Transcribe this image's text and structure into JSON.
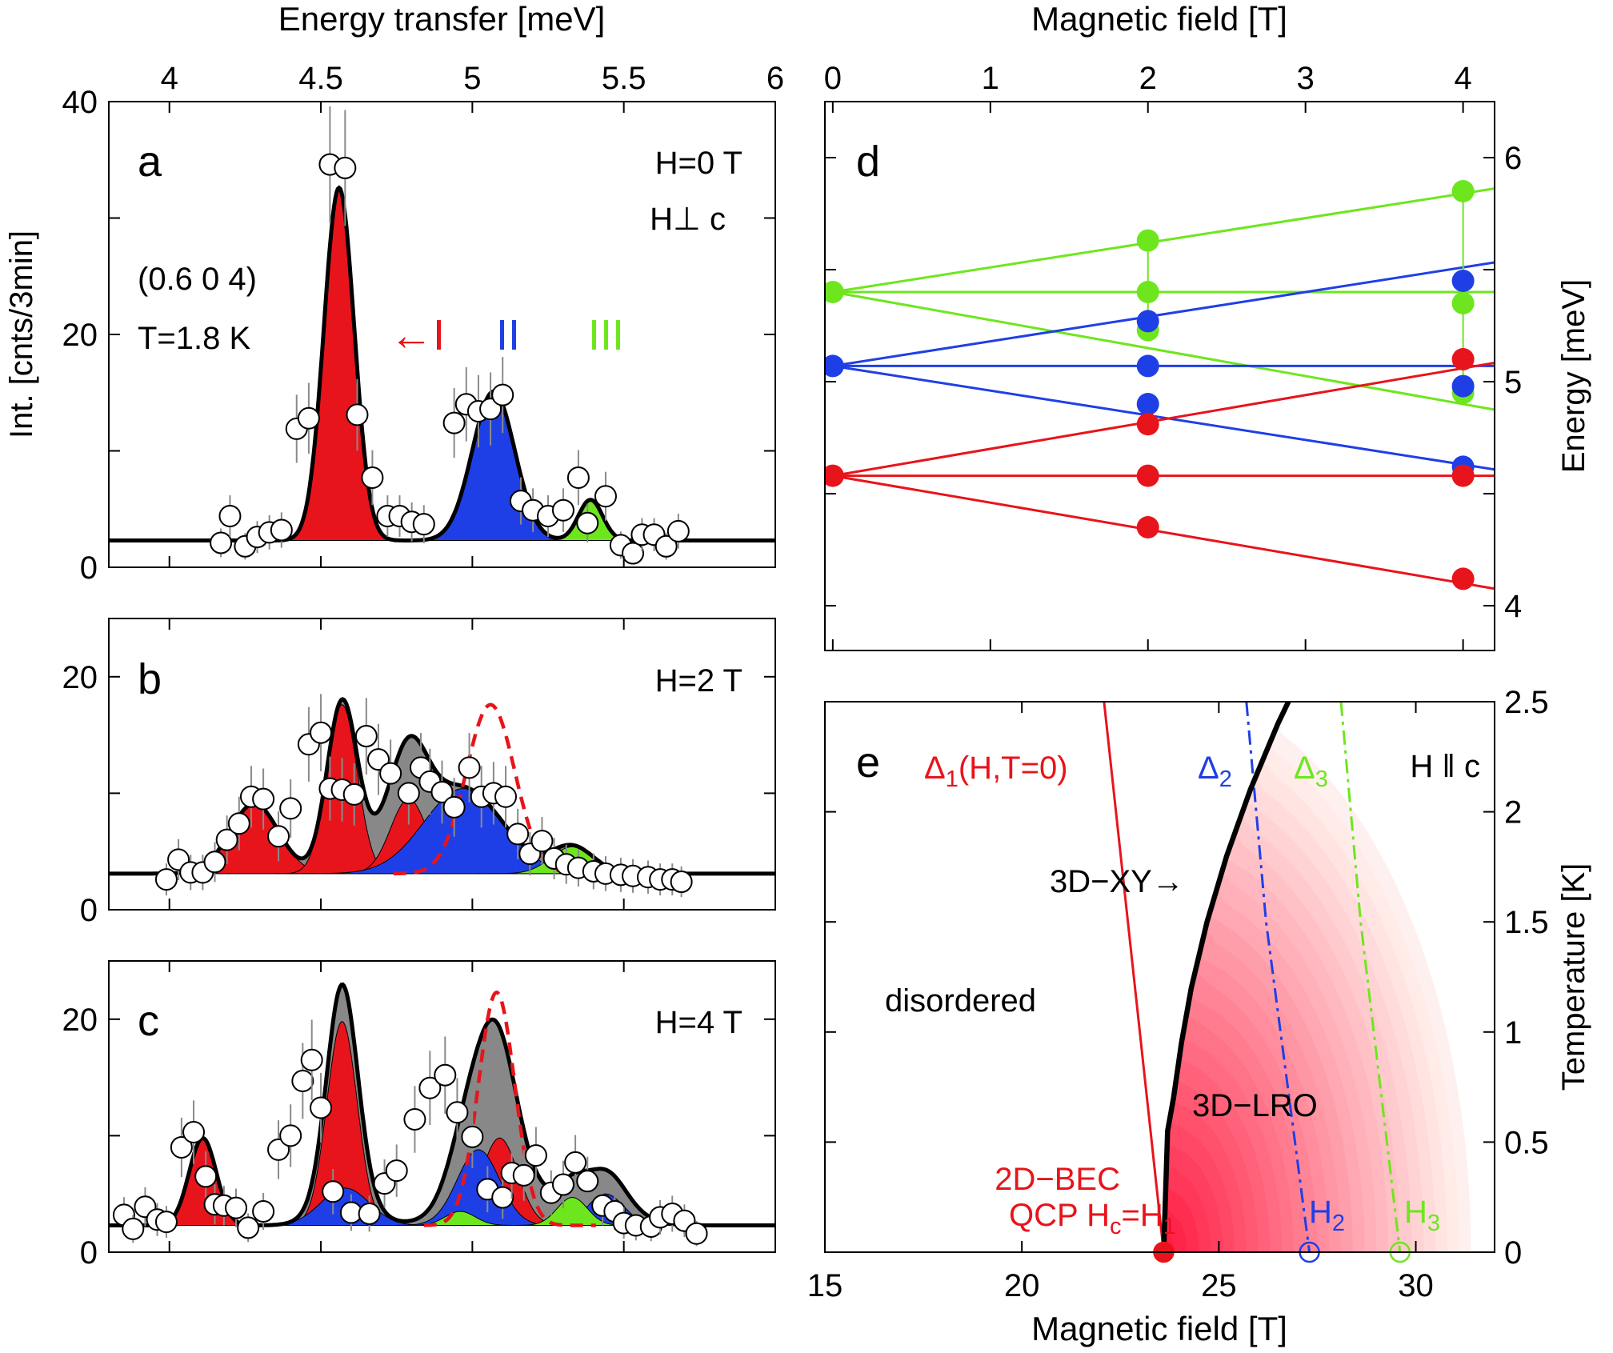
{
  "colors": {
    "I": "#e8141b",
    "II": "#1f3fe6",
    "III": "#6ee61e",
    "gray": "#888888",
    "black": "#000000",
    "dashed": "#e8141b"
  },
  "chart_data": [
    {
      "panel": "a",
      "type": "scatter",
      "xlabel": "Energy transfer [meV]",
      "ylabel": "Int. [cnts/3min]",
      "xlim": [
        3.8,
        6.0
      ],
      "ylim": [
        0,
        40
      ],
      "x_ticks": [
        4,
        4.5,
        5,
        5.5,
        6
      ],
      "y_ticks": [
        0,
        20,
        40
      ],
      "annotations": {
        "field": "H=0 T",
        "orientation": "H⊥ c",
        "q": "(0.6 0 4)",
        "temp": "T=1.8 K",
        "mode1": "←I",
        "mode2": "II",
        "mode3": "III"
      },
      "background": 2.3,
      "peaks": [
        {
          "mode": "I",
          "center": 4.56,
          "amp": 30.3,
          "width": 0.05
        },
        {
          "mode": "II",
          "center": 5.07,
          "amp": 12.8,
          "width": 0.07
        },
        {
          "mode": "III",
          "center": 5.39,
          "amp": 3.5,
          "width": 0.04
        }
      ],
      "points": [
        [
          4.17,
          2.1
        ],
        [
          4.2,
          4.4
        ],
        [
          4.25,
          1.8
        ],
        [
          4.29,
          2.6
        ],
        [
          4.33,
          3.0
        ],
        [
          4.37,
          3.2
        ],
        [
          4.42,
          11.9
        ],
        [
          4.46,
          12.8
        ],
        [
          4.53,
          34.6
        ],
        [
          4.58,
          34.3
        ],
        [
          4.62,
          13.1
        ],
        [
          4.67,
          7.7
        ],
        [
          4.72,
          4.4
        ],
        [
          4.76,
          4.4
        ],
        [
          4.8,
          3.9
        ],
        [
          4.84,
          3.7
        ],
        [
          4.94,
          12.4
        ],
        [
          4.98,
          14.0
        ],
        [
          5.02,
          13.4
        ],
        [
          5.06,
          13.6
        ],
        [
          5.1,
          14.8
        ],
        [
          5.16,
          5.7
        ],
        [
          5.2,
          4.9
        ],
        [
          5.25,
          4.4
        ],
        [
          5.3,
          4.9
        ],
        [
          5.35,
          7.7
        ],
        [
          5.38,
          3.8
        ],
        [
          5.44,
          6.1
        ],
        [
          5.49,
          1.9
        ],
        [
          5.53,
          1.2
        ],
        [
          5.56,
          2.8
        ],
        [
          5.6,
          2.8
        ],
        [
          5.64,
          1.8
        ],
        [
          5.68,
          3.1
        ]
      ]
    },
    {
      "panel": "b",
      "type": "scatter",
      "xlim": [
        3.8,
        6.0
      ],
      "ylim": [
        0,
        25
      ],
      "y_ticks": [
        0,
        20
      ],
      "annotations": {
        "field": "H=2 T"
      },
      "background": 3.1,
      "peaks": [
        {
          "mode": "I",
          "center": 4.28,
          "amp": 6.0,
          "width": 0.08
        },
        {
          "mode": "I",
          "center": 4.57,
          "amp": 14.5,
          "width": 0.05
        },
        {
          "mode": "I",
          "center": 4.79,
          "amp": 6.4,
          "width": 0.06
        },
        {
          "mode": "II",
          "center": 4.97,
          "amp": 7.3,
          "width": 0.13
        },
        {
          "mode": "III",
          "center": 5.33,
          "amp": 2.3,
          "width": 0.07
        },
        {
          "mode": "gray",
          "center": 4.75,
          "amp": 2.8,
          "width": 0.09
        }
      ],
      "dashed": {
        "center": 5.06,
        "amp": 14.5,
        "width": 0.08
      },
      "points": [
        [
          3.99,
          2.6
        ],
        [
          4.03,
          4.3
        ],
        [
          4.07,
          3.2
        ],
        [
          4.11,
          3.2
        ],
        [
          4.15,
          4.1
        ],
        [
          4.19,
          6.0
        ],
        [
          4.23,
          7.4
        ],
        [
          4.27,
          9.7
        ],
        [
          4.31,
          9.5
        ],
        [
          4.36,
          6.3
        ],
        [
          4.4,
          8.7
        ],
        [
          4.46,
          14.2
        ],
        [
          4.5,
          15.2
        ],
        [
          4.53,
          10.4
        ],
        [
          4.57,
          10.3
        ],
        [
          4.61,
          9.9
        ],
        [
          4.65,
          14.9
        ],
        [
          4.69,
          12.9
        ],
        [
          4.73,
          11.7
        ],
        [
          4.79,
          10.0
        ],
        [
          4.83,
          12.2
        ],
        [
          4.86,
          11.0
        ],
        [
          4.9,
          10.1
        ],
        [
          4.94,
          8.8
        ],
        [
          4.99,
          12.2
        ],
        [
          5.03,
          9.7
        ],
        [
          5.07,
          10.0
        ],
        [
          5.11,
          9.7
        ],
        [
          5.15,
          6.5
        ],
        [
          5.19,
          4.8
        ],
        [
          5.23,
          5.9
        ],
        [
          5.27,
          4.4
        ],
        [
          5.31,
          3.9
        ],
        [
          5.35,
          3.6
        ],
        [
          5.4,
          3.3
        ],
        [
          5.44,
          3.1
        ],
        [
          5.49,
          3.0
        ],
        [
          5.53,
          2.9
        ],
        [
          5.58,
          2.8
        ],
        [
          5.62,
          2.6
        ],
        [
          5.66,
          2.6
        ],
        [
          5.69,
          2.4
        ]
      ]
    },
    {
      "panel": "c",
      "type": "scatter",
      "xlim": [
        3.8,
        6.0
      ],
      "ylim": [
        0,
        25
      ],
      "y_ticks": [
        0,
        20
      ],
      "annotations": {
        "field": "H=4 T"
      },
      "background": 2.3,
      "peaks": [
        {
          "mode": "I",
          "center": 4.11,
          "amp": 7.5,
          "width": 0.045
        },
        {
          "mode": "I",
          "center": 4.57,
          "amp": 17.5,
          "width": 0.05
        },
        {
          "mode": "I",
          "center": 5.09,
          "amp": 7.5,
          "width": 0.06
        },
        {
          "mode": "II",
          "center": 4.58,
          "amp": 3.2,
          "width": 0.08
        },
        {
          "mode": "II",
          "center": 5.02,
          "amp": 6.5,
          "width": 0.07
        },
        {
          "mode": "II",
          "center": 5.44,
          "amp": 2.7,
          "width": 0.06
        },
        {
          "mode": "III",
          "center": 4.96,
          "amp": 1.2,
          "width": 0.05
        },
        {
          "mode": "III",
          "center": 5.33,
          "amp": 2.4,
          "width": 0.05
        },
        {
          "mode": "gray",
          "center": 5.09,
          "amp": 5.5,
          "width": 0.12
        },
        {
          "mode": "gray",
          "center": 5.45,
          "amp": 1.8,
          "width": 0.09
        }
      ],
      "dashed": {
        "center": 5.08,
        "amp": 20.0,
        "width": 0.06
      },
      "points": [
        [
          3.85,
          3.2
        ],
        [
          3.88,
          2.0
        ],
        [
          3.92,
          3.9
        ],
        [
          3.96,
          2.8
        ],
        [
          3.99,
          2.6
        ],
        [
          4.04,
          9.0
        ],
        [
          4.08,
          10.3
        ],
        [
          4.12,
          6.5
        ],
        [
          4.15,
          4.1
        ],
        [
          4.18,
          4.0
        ],
        [
          4.22,
          3.8
        ],
        [
          4.26,
          2.1
        ],
        [
          4.31,
          3.5
        ],
        [
          4.36,
          8.8
        ],
        [
          4.4,
          10.0
        ],
        [
          4.44,
          14.7
        ],
        [
          4.47,
          16.5
        ],
        [
          4.5,
          12.4
        ],
        [
          4.54,
          5.2
        ],
        [
          4.6,
          3.4
        ],
        [
          4.66,
          3.3
        ],
        [
          4.71,
          5.9
        ],
        [
          4.75,
          7.0
        ],
        [
          4.81,
          11.4
        ],
        [
          4.86,
          14.1
        ],
        [
          4.91,
          15.2
        ],
        [
          4.95,
          12.0
        ],
        [
          5.0,
          9.9
        ],
        [
          5.05,
          5.4
        ],
        [
          5.1,
          4.7
        ],
        [
          5.13,
          6.8
        ],
        [
          5.17,
          6.6
        ],
        [
          5.21,
          8.3
        ],
        [
          5.26,
          5.1
        ],
        [
          5.3,
          5.8
        ],
        [
          5.34,
          7.7
        ],
        [
          5.38,
          6.1
        ],
        [
          5.43,
          4.0
        ],
        [
          5.47,
          3.5
        ],
        [
          5.5,
          2.5
        ],
        [
          5.54,
          2.3
        ],
        [
          5.59,
          2.2
        ],
        [
          5.62,
          3.0
        ],
        [
          5.66,
          3.3
        ],
        [
          5.7,
          2.7
        ],
        [
          5.74,
          1.6
        ]
      ]
    },
    {
      "panel": "d",
      "type": "scatter",
      "xlabel": "Magnetic field [T]",
      "ylabel": "Energy [meV]",
      "xlim": [
        -0.05,
        4.2
      ],
      "ylim": [
        3.8,
        6.25
      ],
      "x_ticks": [
        0,
        1,
        2,
        3,
        4
      ],
      "y_ticks": [
        4,
        5,
        6
      ],
      "lines": [
        {
          "mode": "III",
          "E0": 5.4,
          "slope": 0.11
        },
        {
          "mode": "III",
          "E0": 5.4,
          "slope": 0.0
        },
        {
          "mode": "III",
          "E0": 5.4,
          "slope": -0.125
        },
        {
          "mode": "II",
          "E0": 5.07,
          "slope": 0.11
        },
        {
          "mode": "II",
          "E0": 5.07,
          "slope": 0.0
        },
        {
          "mode": "II",
          "E0": 5.07,
          "slope": -0.11
        },
        {
          "mode": "I",
          "E0": 4.58,
          "slope": 0.12
        },
        {
          "mode": "I",
          "E0": 4.58,
          "slope": 0.0
        },
        {
          "mode": "I",
          "E0": 4.58,
          "slope": -0.12
        }
      ],
      "points": [
        {
          "mode": "III",
          "H": 0,
          "E": 5.4
        },
        {
          "mode": "II",
          "H": 0,
          "E": 5.07
        },
        {
          "mode": "I",
          "H": 0,
          "E": 4.58
        },
        {
          "mode": "III",
          "H": 2,
          "E": 5.63
        },
        {
          "mode": "III",
          "H": 2,
          "E": 5.4
        },
        {
          "mode": "III",
          "H": 2,
          "E": 5.23
        },
        {
          "mode": "II",
          "H": 2,
          "E": 5.27
        },
        {
          "mode": "II",
          "H": 2,
          "E": 5.07
        },
        {
          "mode": "II",
          "H": 2,
          "E": 4.9
        },
        {
          "mode": "I",
          "H": 2,
          "E": 4.81
        },
        {
          "mode": "I",
          "H": 2,
          "E": 4.58
        },
        {
          "mode": "I",
          "H": 2,
          "E": 4.35
        },
        {
          "mode": "III",
          "H": 4,
          "E": 5.85
        },
        {
          "mode": "III",
          "H": 4,
          "E": 5.35
        },
        {
          "mode": "III",
          "H": 4,
          "E": 4.95
        },
        {
          "mode": "II",
          "H": 4,
          "E": 5.45
        },
        {
          "mode": "II",
          "H": 4,
          "E": 4.98
        },
        {
          "mode": "II",
          "H": 4,
          "E": 4.62
        },
        {
          "mode": "I",
          "H": 4,
          "E": 5.1
        },
        {
          "mode": "I",
          "H": 4,
          "E": 4.58
        },
        {
          "mode": "I",
          "H": 4,
          "E": 4.12
        }
      ]
    },
    {
      "panel": "e",
      "type": "line",
      "xlabel": "Magnetic field [T]",
      "ylabel": "Temperature [K]",
      "xlim": [
        15,
        32
      ],
      "ylim": [
        0,
        2.5
      ],
      "x_ticks": [
        15,
        20,
        25,
        30
      ],
      "y_ticks": [
        0,
        0.5,
        1,
        1.5,
        2,
        2.5
      ],
      "annotations": {
        "delta1": "Δ",
        "delta1_sub": "1",
        "delta1_rest": "(H,T=0)",
        "delta2": "Δ",
        "delta2_sub": "2",
        "delta3": "Δ",
        "delta3_sub": "3",
        "orientation": "H ǁ c",
        "xy": "3D−XY→",
        "disordered": "disordered",
        "lro": "3D−LRO",
        "bec1": "2D−BEC",
        "bec2": "QCP H",
        "bec2_sub": "c",
        "bec2_rest": "=H",
        "bec2_sub2": "1",
        "h2": "H",
        "h2_sub": "2",
        "h3": "H",
        "h3_sub": "3"
      },
      "phase_boundary": [
        [
          23.6,
          0.0
        ],
        [
          23.7,
          0.55
        ],
        [
          23.85,
          0.7
        ],
        [
          24.05,
          0.95
        ],
        [
          24.3,
          1.2
        ],
        [
          24.7,
          1.5
        ],
        [
          25.2,
          1.8
        ],
        [
          25.8,
          2.1
        ],
        [
          26.5,
          2.4
        ],
        [
          26.9,
          2.55
        ]
      ],
      "delta1_line": [
        [
          22.1,
          2.5
        ],
        [
          23.6,
          0.0
        ]
      ],
      "delta2_line": [
        [
          25.7,
          2.5
        ],
        [
          26.2,
          1.5
        ],
        [
          27.3,
          0.0
        ]
      ],
      "delta3_line": [
        [
          28.1,
          2.5
        ],
        [
          28.6,
          1.5
        ],
        [
          29.6,
          0.0
        ]
      ],
      "markers": [
        {
          "H": 23.6,
          "mode": "I",
          "filled": true
        },
        {
          "H": 27.3,
          "mode": "II",
          "filled": false
        },
        {
          "H": 29.6,
          "mode": "III",
          "filled": false
        }
      ]
    }
  ]
}
